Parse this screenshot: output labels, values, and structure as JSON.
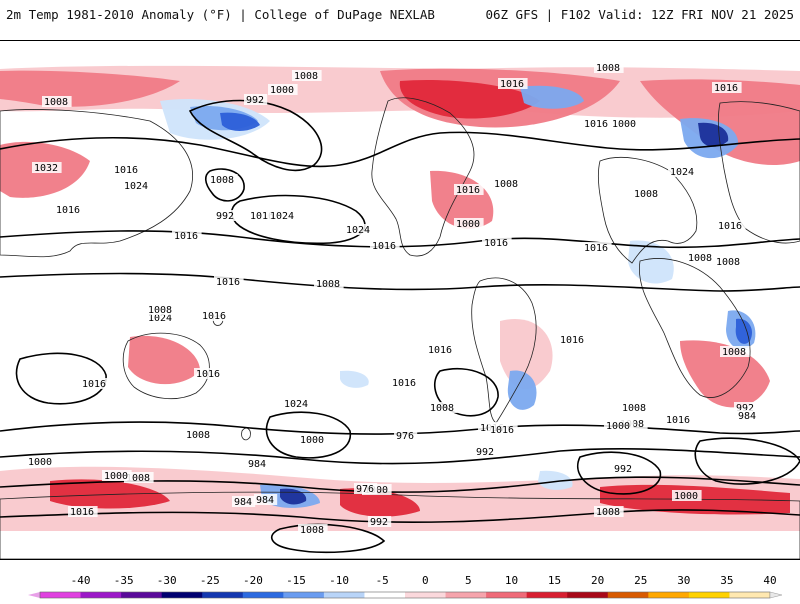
{
  "header": {
    "left_title": "2m Temp 1981-2010 Anomaly (°F) | College of DuPage NEXLAB",
    "right_title": "06Z GFS | F102 Valid: 12Z FRI NOV 21 2025"
  },
  "colors": {
    "warm_light": "#f9c8cc",
    "warm_mid": "#f07a86",
    "warm_strong": "#e0283a",
    "warm_deep": "#a50f15",
    "warm_extreme": "#ffa500",
    "cold_light": "#cfe4fb",
    "cold_mid": "#7ba9ef",
    "cold_strong": "#2c5fd8",
    "cold_deep": "#1a2f9a"
  },
  "isobars": [
    {
      "label": "1008"
    },
    {
      "label": "1008"
    },
    {
      "label": "1008"
    },
    {
      "label": "1000"
    },
    {
      "label": "992"
    },
    {
      "label": "1016"
    },
    {
      "label": "1016"
    },
    {
      "label": "1016"
    },
    {
      "label": "1000"
    },
    {
      "label": "1008"
    },
    {
      "label": "1032"
    },
    {
      "label": "1016"
    },
    {
      "label": "1024"
    },
    {
      "label": "1024"
    },
    {
      "label": "1016"
    },
    {
      "label": "1008"
    },
    {
      "label": "1016"
    },
    {
      "label": "992"
    },
    {
      "label": "1000"
    },
    {
      "label": "1008"
    },
    {
      "label": "1016"
    },
    {
      "label": "1024"
    },
    {
      "label": "1024"
    },
    {
      "label": "1016"
    },
    {
      "label": "1016"
    },
    {
      "label": "1016"
    },
    {
      "label": "1016"
    },
    {
      "label": "1016"
    },
    {
      "label": "1008"
    },
    {
      "label": "1008"
    },
    {
      "label": "1024"
    },
    {
      "label": "1016"
    },
    {
      "label": "1016"
    },
    {
      "label": "1008"
    },
    {
      "label": "1008"
    },
    {
      "label": "1008"
    },
    {
      "label": "1016"
    },
    {
      "label": "1016"
    },
    {
      "label": "1016"
    },
    {
      "label": "1024"
    },
    {
      "label": "1016"
    },
    {
      "label": "1016"
    },
    {
      "label": "1008"
    },
    {
      "label": "1016"
    },
    {
      "label": "1008"
    },
    {
      "label": "1016"
    },
    {
      "label": "1008"
    },
    {
      "label": "992"
    },
    {
      "label": "984"
    },
    {
      "label": "1000"
    },
    {
      "label": "1016"
    },
    {
      "label": "1000"
    },
    {
      "label": "976"
    },
    {
      "label": "992"
    },
    {
      "label": "1000"
    },
    {
      "label": "1008"
    },
    {
      "label": "992"
    },
    {
      "label": "984"
    },
    {
      "label": "984"
    },
    {
      "label": "1000"
    },
    {
      "label": "1000"
    },
    {
      "label": "1008"
    },
    {
      "label": "976"
    },
    {
      "label": "984"
    },
    {
      "label": "992"
    },
    {
      "label": "1016"
    },
    {
      "label": "1008"
    },
    {
      "label": "1000"
    },
    {
      "label": "1008"
    }
  ],
  "legend": {
    "ticks": [
      "-40",
      "-35",
      "-30",
      "-25",
      "-20",
      "-15",
      "-10",
      "-5",
      "0",
      "5",
      "10",
      "15",
      "20",
      "25",
      "30",
      "35",
      "40"
    ],
    "colors": [
      "#e040e0",
      "#9c18c8",
      "#5a0a9a",
      "#000070",
      "#1438b0",
      "#2c6ae0",
      "#6a9cf0",
      "#b8d4f8",
      "#ffffff",
      "#fbd8dc",
      "#f6a4ac",
      "#ef6a78",
      "#d81e30",
      "#a80818",
      "#d85a00",
      "#ffa800",
      "#ffd200",
      "#ffe8b0"
    ]
  }
}
